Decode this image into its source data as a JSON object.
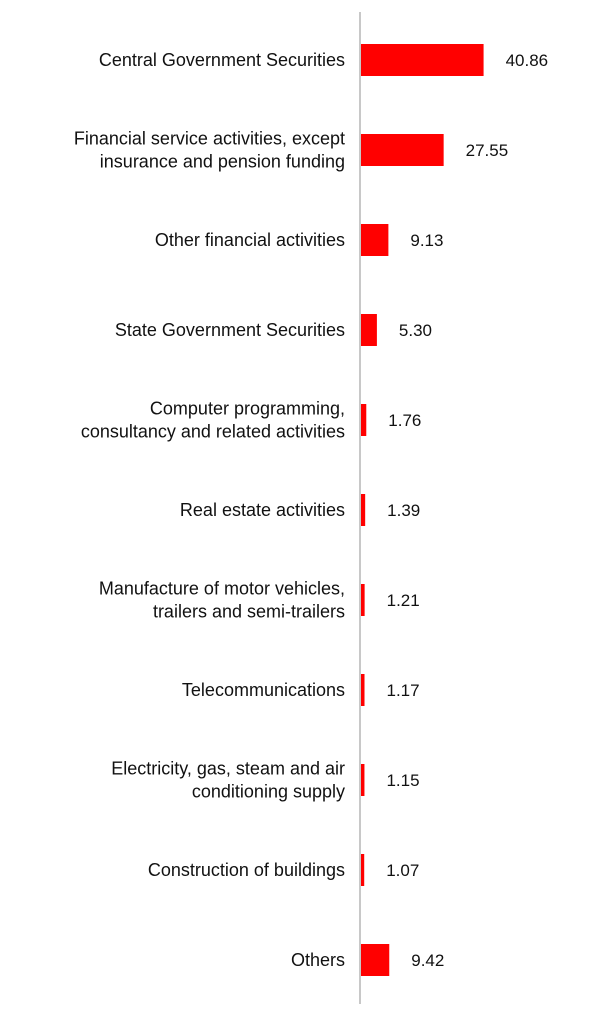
{
  "chart_data": {
    "type": "bar",
    "orientation": "horizontal",
    "title": "",
    "xlabel": "",
    "ylabel": "",
    "grid": false,
    "legend": "none",
    "bar_color": "#ff0000",
    "axis_color": "#c8c8c8",
    "xlim": [
      0,
      50
    ],
    "categories": [
      [
        "Central Government Securities"
      ],
      [
        "Financial service activities, except",
        "insurance and pension funding"
      ],
      [
        "Other financial activities"
      ],
      [
        "State Government Securities"
      ],
      [
        "Computer programming,",
        "consultancy and related activities"
      ],
      [
        "Real estate activities"
      ],
      [
        "Manufacture of motor vehicles,",
        "trailers and semi-trailers"
      ],
      [
        "Telecommunications"
      ],
      [
        "Electricity, gas, steam and air",
        "conditioning supply"
      ],
      [
        "Construction of buildings"
      ],
      [
        "Others"
      ]
    ],
    "values": [
      40.86,
      27.55,
      9.13,
      5.3,
      1.76,
      1.39,
      1.21,
      1.17,
      1.15,
      1.07,
      9.42
    ],
    "value_labels": [
      "40.86",
      "27.55",
      "9.13",
      "5.30",
      "1.76",
      "1.39",
      "1.21",
      "1.17",
      "1.15",
      "1.07",
      "9.42"
    ]
  }
}
